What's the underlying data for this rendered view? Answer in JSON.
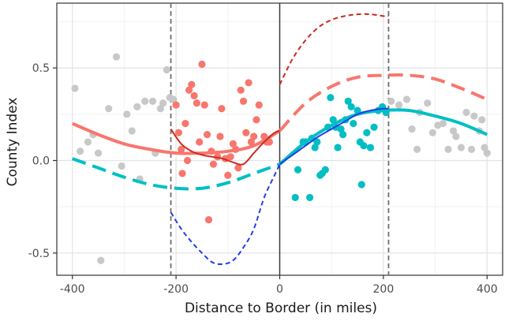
{
  "chart_data": {
    "type": "scatter",
    "title": "",
    "xlabel": "Distance to Border (in miles)",
    "ylabel": "County Index",
    "xlim": [
      -430,
      430
    ],
    "ylim": [
      -0.62,
      0.85
    ],
    "x_ticks": [
      -400,
      -200,
      0,
      200,
      400
    ],
    "x_tick_labels": [
      "-400",
      "-200",
      "0",
      "200",
      "400"
    ],
    "y_ticks": [
      -0.5,
      0.0,
      0.5
    ],
    "y_tick_labels": [
      "-0.5",
      "0.0",
      "0.5"
    ],
    "grid": true,
    "legend": "none",
    "colors": {
      "gray": "#c8c8c8",
      "red": "#f8766d",
      "cyan": "#00bfc4",
      "darkred": "#cc2a1f",
      "blue": "#1f3fe6",
      "dash_gray": "#6e6e6e",
      "axis_line": "#333333"
    },
    "reference_lines": [
      {
        "x": -210,
        "style": "dashed",
        "color": "dash_gray"
      },
      {
        "x": 0,
        "style": "solid",
        "color": "axis_line"
      },
      {
        "x": 210,
        "style": "dashed",
        "color": "dash_gray"
      }
    ],
    "scatter_series": [
      {
        "color": "gray",
        "points": [
          [
            -395,
            0.39
          ],
          [
            -385,
            0.05
          ],
          [
            -370,
            0.1
          ],
          [
            -360,
            0.14
          ],
          [
            -350,
            0.04
          ],
          [
            -345,
            -0.54
          ],
          [
            -330,
            0.28
          ],
          [
            -315,
            0.56
          ],
          [
            -305,
            -0.03
          ],
          [
            -295,
            0.25
          ],
          [
            -285,
            0.16
          ],
          [
            -275,
            0.29
          ],
          [
            -270,
            -0.1
          ],
          [
            -260,
            0.32
          ],
          [
            -245,
            0.32
          ],
          [
            -240,
            0.04
          ],
          [
            -230,
            0.28
          ],
          [
            -225,
            0.31
          ],
          [
            -218,
            0.49
          ],
          [
            -212,
            0.34
          ],
          [
            -205,
            0.33
          ],
          [
            215,
            0.32
          ],
          [
            230,
            0.3
          ],
          [
            245,
            0.33
          ],
          [
            255,
            0.17
          ],
          [
            265,
            0.06
          ],
          [
            270,
            0.26
          ],
          [
            285,
            0.31
          ],
          [
            295,
            0.15
          ],
          [
            305,
            0.19
          ],
          [
            315,
            0.2
          ],
          [
            325,
            0.06
          ],
          [
            335,
            0.16
          ],
          [
            340,
            0.13
          ],
          [
            350,
            0.07
          ],
          [
            360,
            0.26
          ],
          [
            370,
            0.06
          ],
          [
            375,
            0.24
          ],
          [
            385,
            0.16
          ],
          [
            390,
            0.22
          ],
          [
            395,
            0.07
          ],
          [
            400,
            0.04
          ]
        ]
      },
      {
        "color": "red",
        "points": [
          [
            -200,
            0.3
          ],
          [
            -195,
            0.15
          ],
          [
            -190,
            0.06
          ],
          [
            -188,
            -0.07
          ],
          [
            -182,
            0.2
          ],
          [
            -178,
            0.0
          ],
          [
            -175,
            0.38
          ],
          [
            -170,
            0.41
          ],
          [
            -165,
            0.35
          ],
          [
            -160,
            0.31
          ],
          [
            -155,
            0.1
          ],
          [
            -150,
            0.52
          ],
          [
            -145,
            0.3
          ],
          [
            -140,
            0.14
          ],
          [
            -137,
            -0.32
          ],
          [
            -132,
            0.05
          ],
          [
            -128,
            -0.02
          ],
          [
            -120,
            0.02
          ],
          [
            -115,
            0.13
          ],
          [
            -112,
            0.28
          ],
          [
            -105,
            0.01
          ],
          [
            -100,
            -0.08
          ],
          [
            -95,
            0.02
          ],
          [
            -90,
            0.09
          ],
          [
            -85,
            0.06
          ],
          [
            -80,
            -0.04
          ],
          [
            -75,
            0.38
          ],
          [
            -70,
            0.32
          ],
          [
            -65,
            0.15
          ],
          [
            -60,
            0.42
          ],
          [
            -55,
            0.1
          ],
          [
            -50,
            0.13
          ],
          [
            -45,
            0.22
          ],
          [
            -40,
            0.3
          ],
          [
            -30,
            0.13
          ],
          [
            -25,
            0.1
          ],
          [
            -20,
            0.1
          ]
        ]
      },
      {
        "color": "cyan",
        "points": [
          [
            30,
            -0.2
          ],
          [
            35,
            -0.05
          ],
          [
            45,
            0.1
          ],
          [
            50,
            0.1
          ],
          [
            58,
            -0.2
          ],
          [
            62,
            0.12
          ],
          [
            68,
            0.07
          ],
          [
            72,
            0.1
          ],
          [
            78,
            -0.08
          ],
          [
            82,
            -0.07
          ],
          [
            88,
            -0.05
          ],
          [
            93,
            0.18
          ],
          [
            98,
            0.34
          ],
          [
            103,
            0.22
          ],
          [
            108,
            0.18
          ],
          [
            112,
            0.07
          ],
          [
            118,
            0.17
          ],
          [
            122,
            0.14
          ],
          [
            127,
            0.22
          ],
          [
            132,
            0.32
          ],
          [
            138,
            0.29
          ],
          [
            142,
            0.2
          ],
          [
            150,
            0.27
          ],
          [
            155,
            0.1
          ],
          [
            158,
            -0.13
          ],
          [
            162,
            0.08
          ],
          [
            168,
            0.15
          ],
          [
            175,
            0.07
          ],
          [
            182,
            0.18
          ],
          [
            190,
            0.27
          ],
          [
            198,
            0.29
          ],
          [
            205,
            0.26
          ]
        ]
      }
    ],
    "line_series": [
      {
        "color": "red",
        "style": "solid",
        "width": 4,
        "points": [
          [
            -400,
            0.2
          ],
          [
            -350,
            0.14
          ],
          [
            -300,
            0.09
          ],
          [
            -250,
            0.06
          ],
          [
            -200,
            0.04
          ],
          [
            -150,
            0.04
          ],
          [
            -100,
            0.05
          ],
          [
            -50,
            0.08
          ],
          [
            0,
            0.16
          ]
        ]
      },
      {
        "color": "cyan",
        "style": "solid",
        "width": 4,
        "points": [
          [
            0,
            -0.02
          ],
          [
            50,
            0.1
          ],
          [
            100,
            0.19
          ],
          [
            150,
            0.25
          ],
          [
            200,
            0.27
          ],
          [
            250,
            0.27
          ],
          [
            300,
            0.24
          ],
          [
            350,
            0.2
          ],
          [
            400,
            0.14
          ]
        ]
      },
      {
        "color": "cyan",
        "style": "dashed",
        "width": 4,
        "points": [
          [
            -400,
            0.01
          ],
          [
            -350,
            -0.04
          ],
          [
            -300,
            -0.09
          ],
          [
            -250,
            -0.13
          ],
          [
            -200,
            -0.15
          ],
          [
            -150,
            -0.15
          ],
          [
            -100,
            -0.12
          ],
          [
            -50,
            -0.07
          ],
          [
            0,
            -0.02
          ]
        ]
      },
      {
        "color": "red",
        "style": "dashed",
        "width": 4,
        "points": [
          [
            0,
            0.16
          ],
          [
            50,
            0.31
          ],
          [
            100,
            0.4
          ],
          [
            150,
            0.45
          ],
          [
            200,
            0.46
          ],
          [
            250,
            0.46
          ],
          [
            300,
            0.44
          ],
          [
            350,
            0.39
          ],
          [
            400,
            0.33
          ]
        ]
      },
      {
        "color": "darkred",
        "style": "solid",
        "width": 2,
        "points": [
          [
            -210,
            0.17
          ],
          [
            -190,
            0.09
          ],
          [
            -170,
            0.05
          ],
          [
            -150,
            0.03
          ],
          [
            -130,
            0.02
          ],
          [
            -110,
            0.01
          ],
          [
            -90,
            -0.01
          ],
          [
            -70,
            -0.02
          ],
          [
            -50,
            0.04
          ],
          [
            -30,
            0.1
          ],
          [
            -10,
            0.15
          ],
          [
            0,
            0.16
          ]
        ]
      },
      {
        "color": "darkred",
        "style": "dashed",
        "width": 2,
        "points": [
          [
            0,
            0.41
          ],
          [
            25,
            0.55
          ],
          [
            50,
            0.65
          ],
          [
            75,
            0.72
          ],
          [
            100,
            0.76
          ],
          [
            125,
            0.78
          ],
          [
            150,
            0.79
          ],
          [
            175,
            0.79
          ],
          [
            200,
            0.78
          ],
          [
            210,
            0.78
          ]
        ]
      },
      {
        "color": "blue",
        "style": "dashed",
        "width": 2,
        "points": [
          [
            -210,
            -0.28
          ],
          [
            -190,
            -0.37
          ],
          [
            -170,
            -0.44
          ],
          [
            -150,
            -0.5
          ],
          [
            -130,
            -0.55
          ],
          [
            -110,
            -0.56
          ],
          [
            -90,
            -0.54
          ],
          [
            -70,
            -0.47
          ],
          [
            -50,
            -0.37
          ],
          [
            -30,
            -0.2
          ],
          [
            -10,
            -0.08
          ],
          [
            0,
            -0.02
          ]
        ]
      },
      {
        "color": "blue",
        "style": "solid",
        "width": 2,
        "points": [
          [
            0,
            -0.02
          ],
          [
            25,
            0.03
          ],
          [
            50,
            0.08
          ],
          [
            75,
            0.13
          ],
          [
            100,
            0.17
          ],
          [
            125,
            0.21
          ],
          [
            150,
            0.25
          ],
          [
            175,
            0.27
          ],
          [
            200,
            0.28
          ],
          [
            210,
            0.28
          ]
        ]
      }
    ]
  }
}
